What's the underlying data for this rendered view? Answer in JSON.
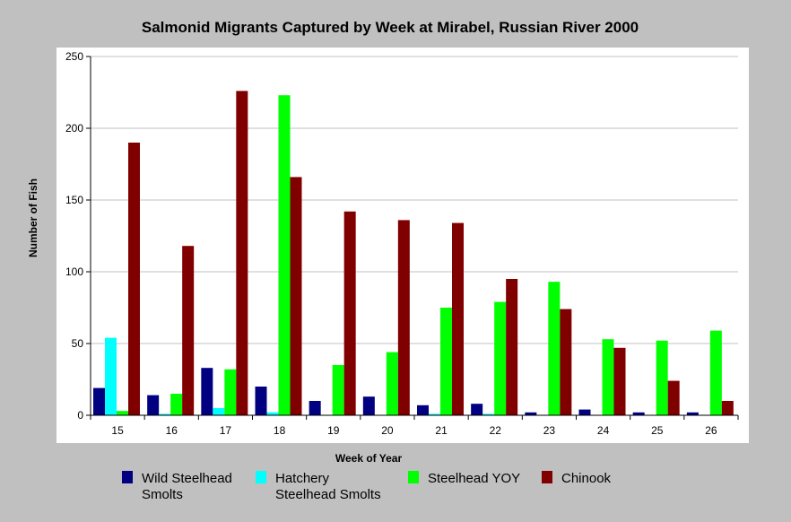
{
  "chart_data": {
    "type": "bar",
    "title": "Salmonid Migrants Captured by Week at Mirabel, Russian River 2000",
    "xlabel": "Week of Year",
    "ylabel": "Number of Fish",
    "ylim": [
      0,
      250
    ],
    "yticks": [
      0,
      50,
      100,
      150,
      200,
      250
    ],
    "grid": true,
    "legend_position": "bottom",
    "categories": [
      "15",
      "16",
      "17",
      "18",
      "19",
      "20",
      "21",
      "22",
      "23",
      "24",
      "25",
      "26"
    ],
    "series": [
      {
        "name": "Wild Steelhead Smolts",
        "legend_lines": [
          "Wild Steelhead",
          "Smolts"
        ],
        "color": "#000080",
        "values": [
          19,
          14,
          33,
          20,
          10,
          13,
          7,
          8,
          2,
          4,
          2,
          2
        ]
      },
      {
        "name": "Hatchery Steelhead Smolts",
        "legend_lines": [
          "Hatchery",
          "Steelhead Smolts"
        ],
        "color": "#00ffff",
        "values": [
          54,
          1,
          5,
          2,
          0,
          0,
          1,
          1,
          0,
          0,
          0,
          0
        ]
      },
      {
        "name": "Steelhead YOY",
        "legend_lines": [
          "Steelhead YOY"
        ],
        "color": "#00ff00",
        "values": [
          3,
          15,
          32,
          223,
          35,
          44,
          75,
          79,
          93,
          53,
          52,
          59
        ]
      },
      {
        "name": "Chinook",
        "legend_lines": [
          "Chinook"
        ],
        "color": "#800000",
        "values": [
          190,
          118,
          226,
          166,
          142,
          136,
          134,
          95,
          74,
          47,
          24,
          10
        ]
      }
    ]
  }
}
